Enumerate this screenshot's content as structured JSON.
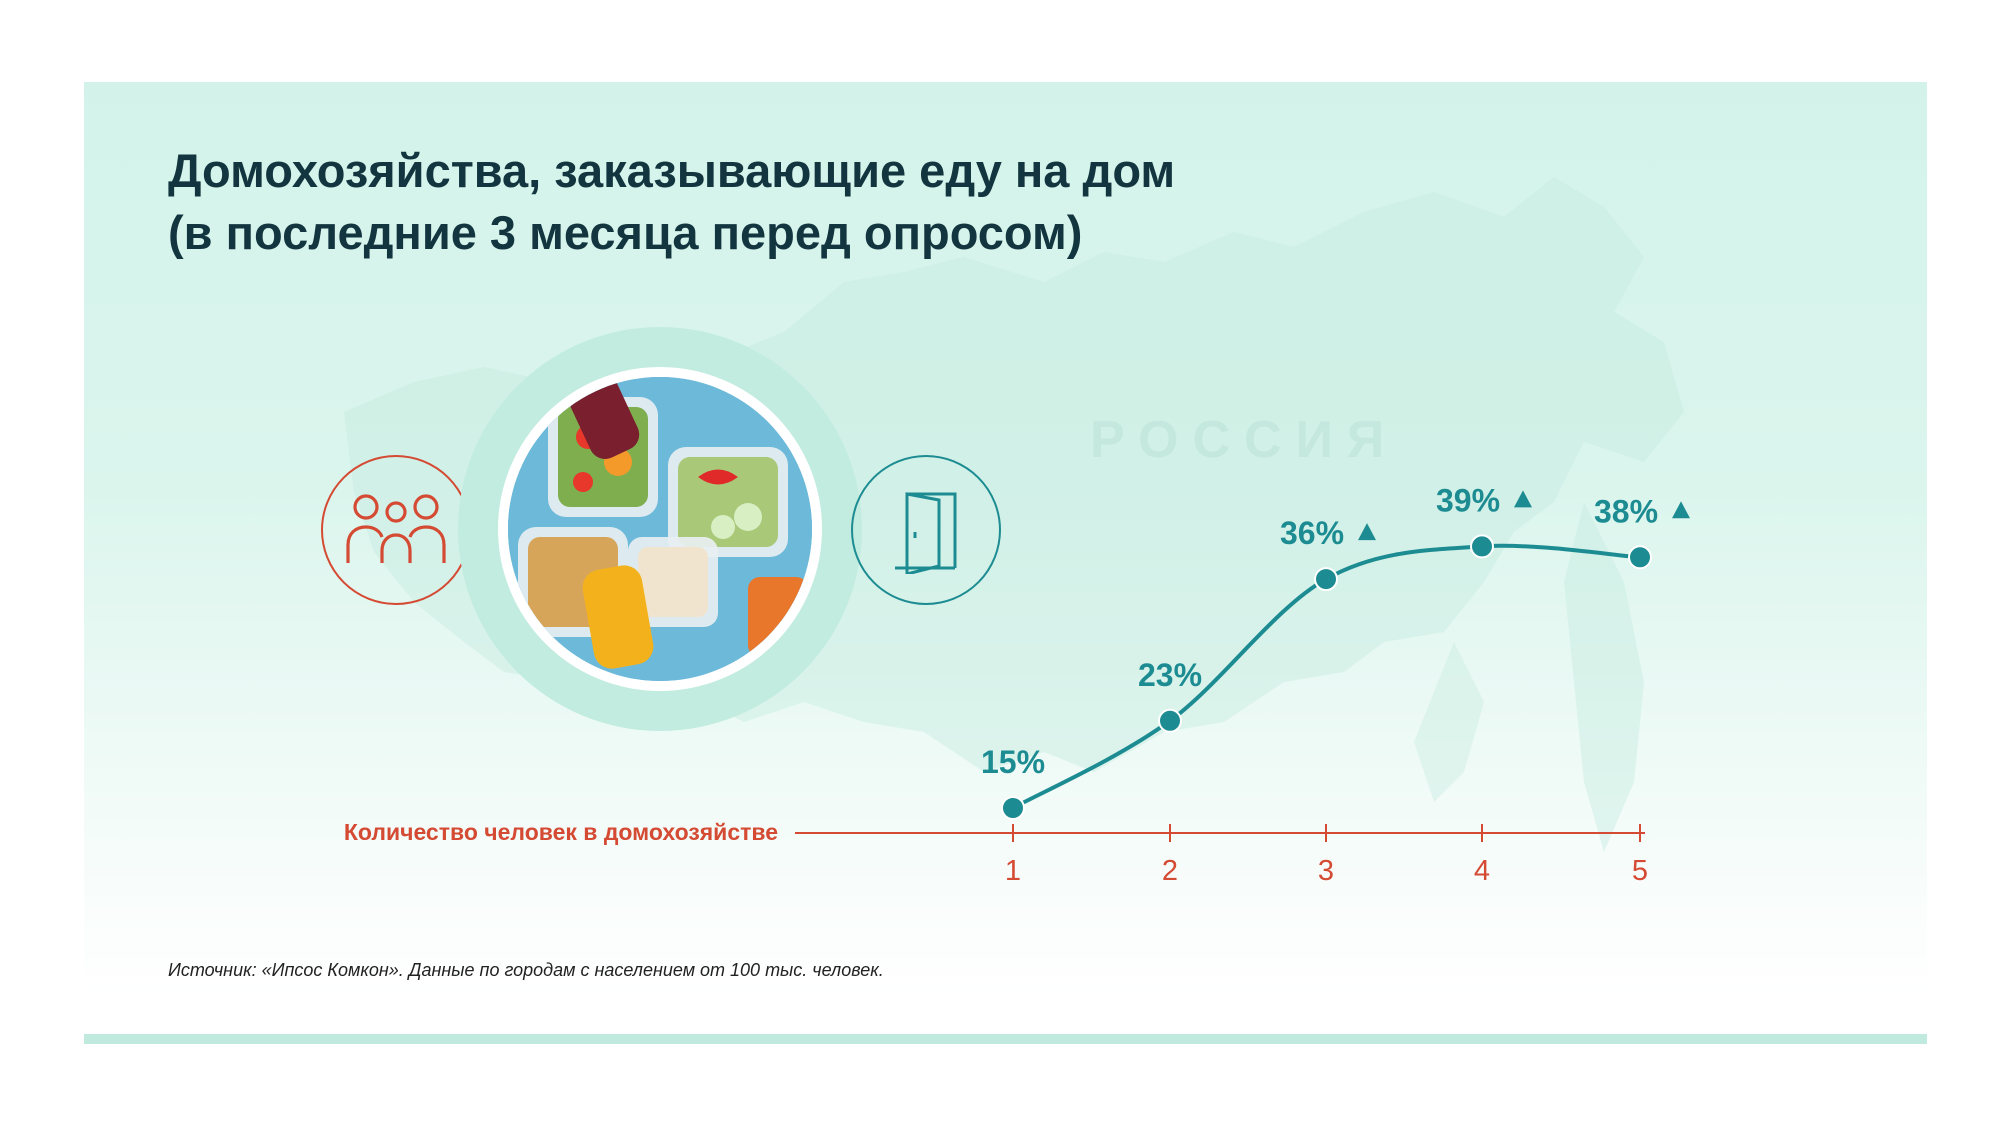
{
  "title": {
    "line1": "Домохозяйства, заказывающие еду на дом",
    "line2": "(в последние 3 месяца перед опросом)"
  },
  "map_label": "РОССИЯ",
  "source": "Источник: «Ипсос Комкон». Данные по городам с населением от 100 тыс. человек.",
  "icons": {
    "people": "family-icon",
    "food": "food-containers-image",
    "door": "door-icon",
    "trend_up": "triangle-up-icon"
  },
  "colors": {
    "title": "#12353f",
    "line": "#1d8c92",
    "axis": "#d44a33",
    "background": "#d3f3ea"
  },
  "chart_data": {
    "type": "line",
    "xlabel": "Количество человек в домохозяйстве",
    "ylabel": "",
    "categories": [
      "1",
      "2",
      "3",
      "4",
      "5"
    ],
    "values": [
      15,
      23,
      36,
      39,
      38
    ],
    "value_labels": [
      "15%",
      "23%",
      "36%",
      "39%",
      "38%"
    ],
    "increase_markers": [
      false,
      false,
      true,
      true,
      true
    ],
    "unit": "%",
    "grid": false,
    "legend": "none"
  }
}
